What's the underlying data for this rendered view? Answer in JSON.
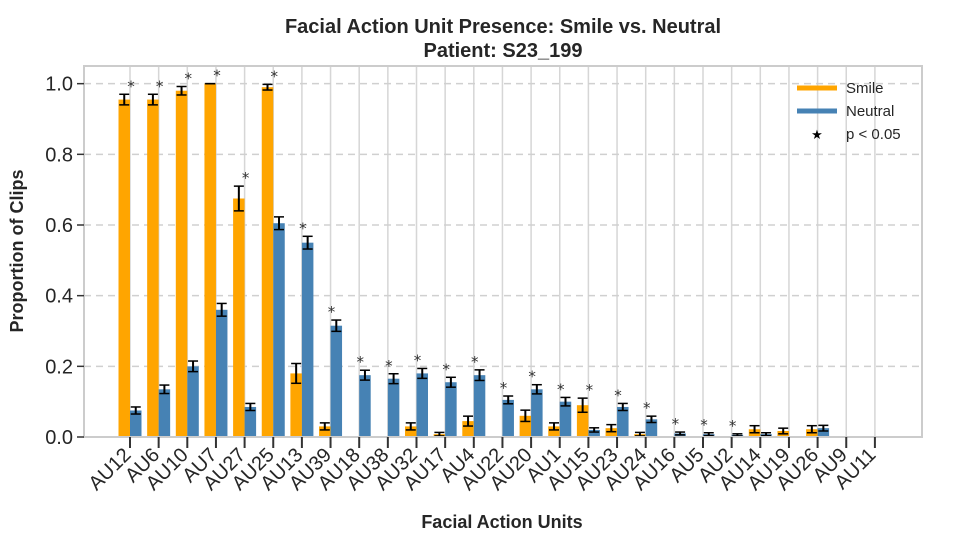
{
  "chart_data": {
    "type": "bar",
    "title": "Facial Action Unit Presence: Smile vs. Neutral",
    "subtitle": "Patient: S23_199",
    "xlabel": "Facial Action Units",
    "ylabel": "Proportion of Clips",
    "ylim": [
      0,
      1.05
    ],
    "yticks": [
      "0.0",
      "0.2",
      "0.4",
      "0.6",
      "0.8",
      "1.0"
    ],
    "grid": "y-dashed, x-solid",
    "legend_position": "top-right",
    "categories": [
      "AU12",
      "AU6",
      "AU10",
      "AU7",
      "AU27",
      "AU25",
      "AU13",
      "AU39",
      "AU18",
      "AU38",
      "AU32",
      "AU17",
      "AU4",
      "AU22",
      "AU20",
      "AU1",
      "AU15",
      "AU23",
      "AU24",
      "AU16",
      "AU5",
      "AU2",
      "AU14",
      "AU19",
      "AU26",
      "AU9",
      "AU11"
    ],
    "series": [
      {
        "name": "Smile",
        "color": "#FFA500",
        "values": [
          0.955,
          0.955,
          0.98,
          1.0,
          0.675,
          0.99,
          0.18,
          0.03,
          0.0,
          0.0,
          0.03,
          0.008,
          0.045,
          0.0,
          0.06,
          0.03,
          0.09,
          0.025,
          0.008,
          0.0,
          0.0,
          0.0,
          0.022,
          0.017,
          0.022,
          0.0,
          0.0
        ],
        "errors": [
          0.015,
          0.015,
          0.012,
          0.0,
          0.035,
          0.008,
          0.028,
          0.01,
          0.0,
          0.0,
          0.01,
          0.005,
          0.014,
          0.0,
          0.016,
          0.01,
          0.02,
          0.01,
          0.005,
          0.0,
          0.0,
          0.0,
          0.01,
          0.008,
          0.01,
          0.0,
          0.0
        ]
      },
      {
        "name": "Neutral",
        "color": "#4682B4",
        "values": [
          0.075,
          0.135,
          0.2,
          0.36,
          0.085,
          0.605,
          0.55,
          0.315,
          0.175,
          0.165,
          0.18,
          0.155,
          0.175,
          0.105,
          0.135,
          0.1,
          0.02,
          0.085,
          0.05,
          0.01,
          0.008,
          0.006,
          0.008,
          0.0,
          0.025,
          0.0,
          0.0
        ],
        "errors": [
          0.01,
          0.012,
          0.015,
          0.018,
          0.01,
          0.018,
          0.018,
          0.016,
          0.014,
          0.014,
          0.014,
          0.014,
          0.015,
          0.011,
          0.013,
          0.012,
          0.006,
          0.01,
          0.009,
          0.004,
          0.004,
          0.003,
          0.004,
          0.0,
          0.008,
          0.0,
          0.0
        ]
      }
    ],
    "significance_marker": "*",
    "significance_label": "p < 0.05",
    "significant": [
      true,
      true,
      true,
      true,
      true,
      true,
      true,
      true,
      true,
      true,
      true,
      true,
      true,
      true,
      true,
      true,
      true,
      true,
      true,
      true,
      true,
      true,
      false,
      false,
      false,
      false,
      false
    ]
  }
}
